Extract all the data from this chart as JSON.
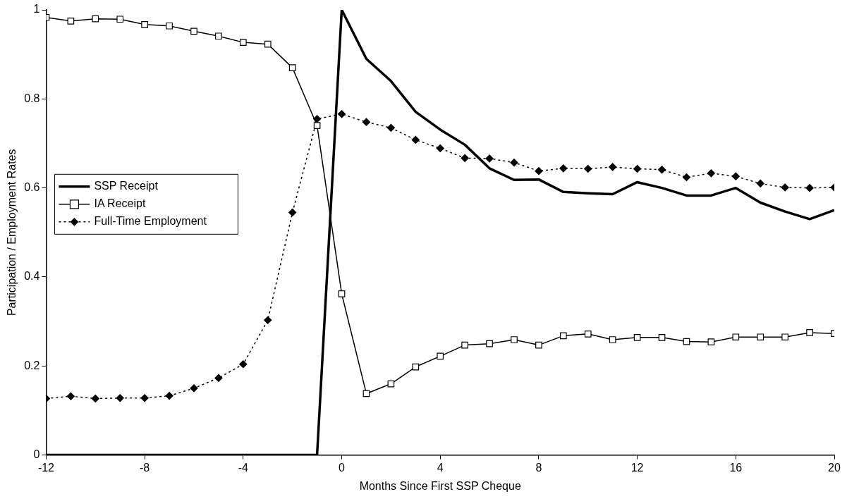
{
  "chart_data": {
    "type": "line",
    "xlabel": "Months Since First SSP Cheque",
    "ylabel": "Participation / Employment Rates",
    "x": [
      -12,
      -11,
      -10,
      -9,
      -8,
      -7,
      -6,
      -5,
      -4,
      -3,
      -2,
      -1,
      0,
      1,
      2,
      3,
      4,
      5,
      6,
      7,
      8,
      9,
      10,
      11,
      12,
      13,
      14,
      15,
      16,
      17,
      18,
      19,
      20
    ],
    "series": [
      {
        "name": "SSP Receipt",
        "color": "#000000",
        "marker": "none",
        "line_style": "solid",
        "values": [
          0,
          0,
          0,
          0,
          0,
          0,
          0,
          0,
          0,
          0,
          0,
          0,
          1.0,
          0.89,
          0.84,
          0.771,
          0.731,
          0.697,
          0.644,
          0.618,
          0.619,
          0.591,
          0.588,
          0.586,
          0.613,
          0.6,
          0.583,
          0.583,
          0.6,
          0.567,
          0.547,
          0.53,
          0.55
        ]
      },
      {
        "name": "IA Receipt",
        "color": "#000000",
        "marker": "square",
        "line_style": "solid",
        "values": [
          0.983,
          0.975,
          0.98,
          0.979,
          0.967,
          0.964,
          0.952,
          0.941,
          0.927,
          0.923,
          0.87,
          0.74,
          0.362,
          0.138,
          0.16,
          0.198,
          0.222,
          0.247,
          0.25,
          0.259,
          0.247,
          0.268,
          0.272,
          0.259,
          0.264,
          0.264,
          0.255,
          0.254,
          0.265,
          0.265,
          0.265,
          0.275,
          0.273
        ]
      },
      {
        "name": "Full-Time Employment",
        "color": "#000000",
        "marker": "diamond",
        "line_style": "dotted",
        "values": [
          0.127,
          0.132,
          0.127,
          0.128,
          0.128,
          0.133,
          0.15,
          0.173,
          0.204,
          0.303,
          0.545,
          0.755,
          0.766,
          0.748,
          0.735,
          0.708,
          0.689,
          0.667,
          0.666,
          0.657,
          0.638,
          0.644,
          0.643,
          0.647,
          0.643,
          0.641,
          0.624,
          0.633,
          0.626,
          0.61,
          0.601,
          0.6,
          0.601
        ]
      }
    ],
    "xlim": [
      -12,
      20
    ],
    "xticks": [
      -12,
      -8,
      -4,
      0,
      4,
      8,
      12,
      16,
      20
    ],
    "ylim": [
      0,
      1
    ],
    "yticks": [
      0,
      0.2,
      0.4,
      0.6,
      0.8,
      1
    ],
    "grid": false,
    "legend": "left"
  }
}
